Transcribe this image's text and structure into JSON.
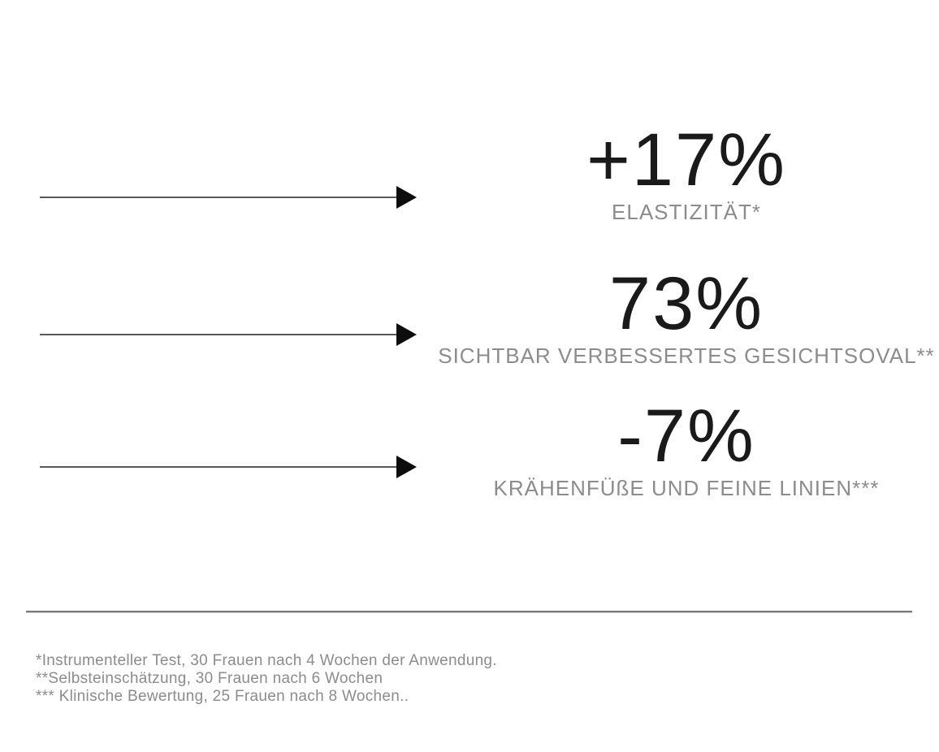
{
  "stats": [
    {
      "value": "+17%",
      "label": "ELASTIZITÄT*"
    },
    {
      "value": "73%",
      "label": "SICHTBAR VERBESSERTES GESICHTSOVAL**"
    },
    {
      "value": "-7%",
      "label": "KRÄHENFÜßE UND FEINE LINIEN***"
    }
  ],
  "footnotes": [
    "*Instrumenteller Test, 30 Frauen nach 4 Wochen der Anwendung.",
    "**Selbsteinschätzung, 30 Frauen nach 6 Wochen",
    "*** Klinische Bewertung, 25 Frauen nach 8 Wochen.."
  ],
  "colors": {
    "background": "#ffffff",
    "value_text": "#1a1a1a",
    "label_text": "#8c8c8c",
    "arrow_line": "#595959",
    "arrow_head": "#0d0d0d",
    "divider": "#7a7a7a",
    "footnote_text": "#8c8c8c"
  }
}
